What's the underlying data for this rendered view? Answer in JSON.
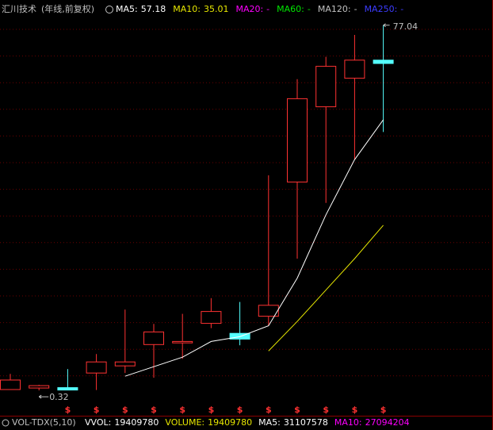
{
  "chart_data": {
    "type": "candlestick",
    "title": "汇川技术",
    "subtitle": "(年线,前复权)",
    "ylim": [
      -2,
      82
    ],
    "up_color": "#ff3232",
    "down_color": "#54ffff",
    "candles": [
      {
        "open": 0.5,
        "high": 3.8,
        "low": 0.5,
        "close": 2.5
      },
      {
        "open": 0.82,
        "high": 1.5,
        "low": 0.32,
        "close": 1.32
      },
      {
        "open": 0.9,
        "high": 4.8,
        "low": 0.35,
        "close": 0.4
      },
      {
        "open": 3.97,
        "high": 7.96,
        "low": 0.4,
        "close": 6.3
      },
      {
        "open": 5.47,
        "high": 17.3,
        "low": 3.97,
        "close": 6.3
      },
      {
        "open": 9.95,
        "high": 14.3,
        "low": 2.98,
        "close": 12.6
      },
      {
        "open": 10.3,
        "high": 16.4,
        "low": 6.96,
        "close": 10.6
      },
      {
        "open": 14.4,
        "high": 19.7,
        "low": 13.4,
        "close": 16.9
      },
      {
        "open": 12.3,
        "high": 18.9,
        "low": 9.8,
        "close": 11.1
      },
      {
        "open": 15.9,
        "high": 45.5,
        "low": 13.9,
        "close": 18.2
      },
      {
        "open": 44.1,
        "high": 65.7,
        "low": 28.0,
        "close": 61.6
      },
      {
        "open": 59.9,
        "high": 70.4,
        "low": 39.7,
        "close": 68.4
      },
      {
        "open": 65.9,
        "high": 75.0,
        "low": 48.8,
        "close": 69.7
      },
      {
        "open": 69.7,
        "high": 77.04,
        "low": 54.6,
        "close": 69.0
      }
    ],
    "series": [
      {
        "name": "MA5:",
        "color": "#ffffff",
        "values": [
          null,
          null,
          null,
          null,
          3.3,
          5.3,
          7.3,
          10.6,
          11.6,
          13.9,
          23.9,
          37.2,
          48.8,
          57.18
        ]
      },
      {
        "name": "MA10:",
        "color": "#e6e600",
        "values": [
          null,
          null,
          null,
          null,
          null,
          null,
          null,
          null,
          null,
          8.6,
          14.8,
          21.4,
          28.0,
          35.01
        ]
      }
    ],
    "legend_extra": [
      {
        "name": "MA20:",
        "value": "-",
        "color": "#ff00ff"
      },
      {
        "name": "MA60:",
        "value": "-",
        "color": "#00e600"
      },
      {
        "name": "MA120:",
        "value": "-",
        "color": "#c0c0c0"
      },
      {
        "name": "MA250:",
        "value": "-",
        "color": "#3c3cff"
      }
    ],
    "markers": [
      null,
      null,
      "$",
      "$",
      "$",
      "$",
      "$",
      "$",
      "$",
      "$",
      "$",
      "$",
      "$",
      "$"
    ],
    "volume_panel": {
      "title": "VOL-TDX(5,10)",
      "items": [
        {
          "name": "VVOL:",
          "value": 19409780,
          "color": "#ffffff"
        },
        {
          "name": "VOLUME:",
          "value": 19409780,
          "color": "#e6e600"
        },
        {
          "name": "MA5:",
          "value": 31107578,
          "color": "#ffffff"
        },
        {
          "name": "MA10:",
          "value": 27094204,
          "color": "#ff00ff"
        }
      ]
    }
  }
}
